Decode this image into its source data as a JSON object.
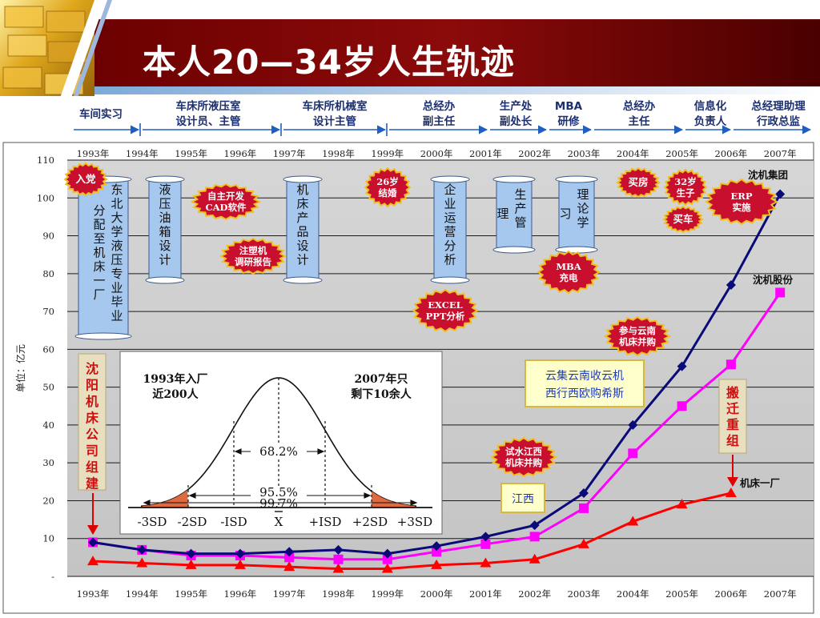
{
  "title": "本人20—34岁人生轨迹",
  "phases": [
    {
      "lines": [
        "车间实习"
      ]
    },
    {
      "lines": [
        "车床所液压室",
        "设计员、主管"
      ]
    },
    {
      "lines": [
        "车床所机械室",
        "设计主管"
      ]
    },
    {
      "lines": [
        "总经办",
        "副主任"
      ]
    },
    {
      "lines": [
        "生产处",
        "副处长"
      ]
    },
    {
      "lines": [
        "MBA",
        "研修"
      ]
    },
    {
      "lines": [
        "总经办",
        "主任"
      ]
    },
    {
      "lines": [
        "信息化",
        "负责人"
      ]
    },
    {
      "lines": [
        "总经理助理",
        "行政总监"
      ]
    }
  ],
  "chart_data": {
    "type": "line",
    "x": [
      "1993年",
      "1994年",
      "1995年",
      "1996年",
      "1997年",
      "1998年",
      "1999年",
      "2000年",
      "2001年",
      "2002年",
      "2003年",
      "2004年",
      "2005年",
      "2006年",
      "2007年"
    ],
    "ylabel": "单位：亿元",
    "ylim": [
      0,
      110
    ],
    "yticks": [
      "-",
      "10",
      "20",
      "30",
      "40",
      "50",
      "60",
      "70",
      "80",
      "90",
      "100",
      "110"
    ],
    "grid": true,
    "series": [
      {
        "name": "沈机集团",
        "color": "#0a0a78",
        "marker": "diamond",
        "values": [
          9,
          7,
          6,
          6,
          6.5,
          7,
          6,
          8,
          10.5,
          13.5,
          22,
          40,
          55.5,
          77,
          101
        ]
      },
      {
        "name": "沈机股份",
        "color": "#ff00ff",
        "marker": "square",
        "values": [
          9,
          7,
          5.5,
          5.5,
          5,
          4.5,
          4.5,
          6.5,
          8.5,
          10.5,
          18,
          32.5,
          45,
          56,
          75
        ]
      },
      {
        "name": "机床一厂",
        "color": "#ff0000",
        "marker": "triangle",
        "values": [
          4,
          3.5,
          3,
          3,
          2.5,
          2,
          2,
          3,
          3.5,
          4.5,
          8.5,
          14.5,
          19,
          22,
          null
        ]
      }
    ]
  },
  "annotations": {
    "scrolls": [
      {
        "text": "东北大学液压专业毕业分配至机床一厂"
      },
      {
        "text": "液压油箱设计"
      },
      {
        "text": "机床产品设计"
      },
      {
        "text": "企业运营分析"
      },
      {
        "text": "生产管理"
      },
      {
        "text": "理论学习"
      }
    ],
    "seals": [
      {
        "text": "入党"
      },
      {
        "text": "自主开发CAD软件"
      },
      {
        "text": "注塑机调研报告"
      },
      {
        "text": "26岁结婚"
      },
      {
        "text": "EXCEL PPT分析"
      },
      {
        "text": "MBA充电"
      },
      {
        "text": "买房"
      },
      {
        "text": "32岁生子"
      },
      {
        "text": "ERP实施"
      },
      {
        "text": "买车"
      },
      {
        "text": "参与云南机床并购"
      },
      {
        "text": "试水江西机床并购"
      }
    ],
    "vertical_labels": [
      {
        "text": "沈阳机床公司组建"
      },
      {
        "text": "搬迁重组"
      }
    ],
    "boxes": [
      {
        "text": "云集云南收云机西行西欧购希斯"
      },
      {
        "text": "江西"
      }
    ],
    "bell_curve": {
      "left_text": [
        "1993年入厂",
        "近200人"
      ],
      "right_text": [
        "2007年只",
        "剩下10余人"
      ],
      "pct1": "68.2%",
      "pct2": "95.5%",
      "pct3": "99.7%",
      "axis": [
        "-3SD",
        "-2SD",
        "-ISD",
        "X",
        "+ISD",
        "+2SD",
        "+3SD"
      ]
    }
  }
}
